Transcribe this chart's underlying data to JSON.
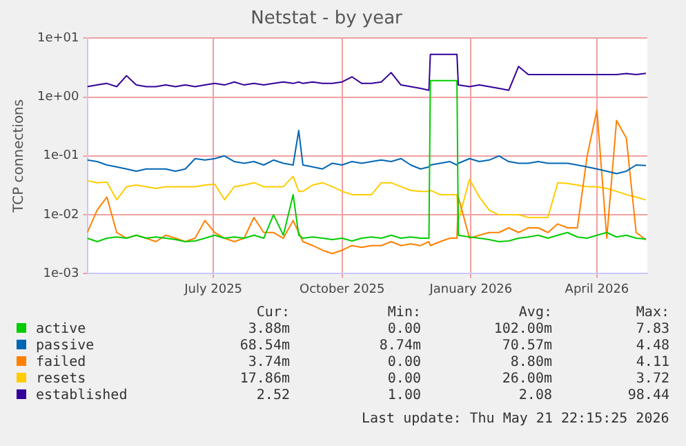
{
  "chart_data": {
    "type": "line",
    "title": "Netstat - by year",
    "ylabel": "TCP connections",
    "log": "y",
    "grid": true,
    "legend": "bottom",
    "marker": "none",
    "line_style": "solid",
    "xlim": [
      "2025-04-17",
      "2026-05-22"
    ],
    "xticks": [
      {
        "value": "2025-07-16",
        "label": "July 2025"
      },
      {
        "value": "2025-10-16",
        "label": "October 2025"
      },
      {
        "value": "2026-01-16",
        "label": "January 2026"
      },
      {
        "value": "2026-04-16",
        "label": "April 2026"
      }
    ],
    "ylim": [
      0.001,
      10
    ],
    "yticks": [
      {
        "value": 0.001,
        "label": "1e-03"
      },
      {
        "value": 0.01,
        "label": "1e-02"
      },
      {
        "value": 0.1,
        "label": "1e-01"
      },
      {
        "value": 1,
        "label": "1e+00"
      },
      {
        "value": 10,
        "label": "1e+01"
      }
    ],
    "x": [
      "2025-04-17",
      "2025-04-24",
      "2025-05-01",
      "2025-05-08",
      "2025-05-15",
      "2025-05-22",
      "2025-05-29",
      "2025-06-05",
      "2025-06-12",
      "2025-06-19",
      "2025-06-26",
      "2025-07-03",
      "2025-07-10",
      "2025-07-17",
      "2025-07-24",
      "2025-07-31",
      "2025-08-07",
      "2025-08-14",
      "2025-08-21",
      "2025-08-28",
      "2025-09-04",
      "2025-09-11",
      "2025-09-15",
      "2025-09-18",
      "2025-09-25",
      "2025-10-02",
      "2025-10-09",
      "2025-10-16",
      "2025-10-23",
      "2025-10-30",
      "2025-11-06",
      "2025-11-13",
      "2025-11-20",
      "2025-11-27",
      "2025-12-04",
      "2025-12-11",
      "2025-12-17",
      "2025-12-18",
      "2025-12-25",
      "2026-01-01",
      "2026-01-06",
      "2026-01-07",
      "2026-01-15",
      "2026-01-22",
      "2026-01-29",
      "2026-02-05",
      "2026-02-12",
      "2026-02-19",
      "2026-02-26",
      "2026-03-05",
      "2026-03-12",
      "2026-03-19",
      "2026-03-26",
      "2026-04-02",
      "2026-04-09",
      "2026-04-16",
      "2026-04-23",
      "2026-04-30",
      "2026-05-07",
      "2026-05-14",
      "2026-05-21"
    ],
    "series": [
      {
        "name": "active",
        "color": "#00cc00",
        "values": [
          0.004,
          0.0035,
          0.004,
          0.0042,
          0.004,
          0.0045,
          0.004,
          0.0042,
          0.004,
          0.0038,
          0.0035,
          0.0036,
          0.004,
          0.0045,
          0.004,
          0.0042,
          0.004,
          0.0045,
          0.004,
          0.01,
          0.0045,
          0.022,
          0.0045,
          0.004,
          0.0042,
          0.004,
          0.0038,
          0.004,
          0.0036,
          0.004,
          0.0042,
          0.004,
          0.0045,
          0.004,
          0.0042,
          0.004,
          0.004,
          1.9,
          1.9,
          1.9,
          1.9,
          0.0045,
          0.0042,
          0.004,
          0.0038,
          0.0035,
          0.0036,
          0.004,
          0.0042,
          0.0045,
          0.004,
          0.0045,
          0.005,
          0.0042,
          0.004,
          0.0045,
          0.005,
          0.0042,
          0.0045,
          0.004,
          0.00388
        ]
      },
      {
        "name": "passive",
        "color": "#0066b3",
        "values": [
          0.085,
          0.08,
          0.07,
          0.065,
          0.06,
          0.055,
          0.06,
          0.06,
          0.06,
          0.055,
          0.06,
          0.09,
          0.085,
          0.09,
          0.1,
          0.08,
          0.075,
          0.08,
          0.07,
          0.085,
          0.075,
          0.07,
          0.27,
          0.07,
          0.065,
          0.06,
          0.075,
          0.07,
          0.08,
          0.075,
          0.08,
          0.085,
          0.08,
          0.09,
          0.07,
          0.06,
          0.065,
          0.07,
          0.075,
          0.08,
          0.07,
          0.075,
          0.09,
          0.08,
          0.085,
          0.1,
          0.08,
          0.075,
          0.075,
          0.08,
          0.075,
          0.075,
          0.075,
          0.07,
          0.065,
          0.06,
          0.055,
          0.05,
          0.055,
          0.07,
          0.0685
        ]
      },
      {
        "name": "failed",
        "color": "#ff8000",
        "values": [
          0.005,
          0.012,
          0.02,
          0.005,
          0.004,
          0.0045,
          0.004,
          0.0035,
          0.0045,
          0.004,
          0.0035,
          0.004,
          0.008,
          0.005,
          0.004,
          0.0035,
          0.004,
          0.009,
          0.005,
          0.005,
          0.004,
          0.008,
          0.005,
          0.0035,
          0.003,
          0.0025,
          0.0022,
          0.0025,
          0.003,
          0.0028,
          0.003,
          0.003,
          0.0035,
          0.003,
          0.0032,
          0.003,
          0.0035,
          0.003,
          0.0035,
          0.004,
          0.004,
          0.02,
          0.004,
          0.0045,
          0.005,
          0.005,
          0.006,
          0.005,
          0.006,
          0.006,
          0.005,
          0.007,
          0.006,
          0.006,
          0.1,
          0.6,
          0.004,
          0.4,
          0.2,
          0.005,
          0.00374
        ]
      },
      {
        "name": "resets",
        "color": "#ffcc00",
        "values": [
          0.038,
          0.035,
          0.036,
          0.018,
          0.03,
          0.032,
          0.03,
          0.028,
          0.03,
          0.03,
          0.03,
          0.03,
          0.032,
          0.033,
          0.018,
          0.03,
          0.032,
          0.035,
          0.03,
          0.03,
          0.03,
          0.045,
          0.025,
          0.025,
          0.032,
          0.035,
          0.03,
          0.025,
          0.022,
          0.022,
          0.022,
          0.035,
          0.035,
          0.03,
          0.026,
          0.025,
          0.025,
          0.026,
          0.022,
          0.022,
          0.022,
          0.008,
          0.04,
          0.02,
          0.012,
          0.01,
          0.01,
          0.01,
          0.009,
          0.009,
          0.009,
          0.035,
          0.034,
          0.032,
          0.03,
          0.03,
          0.028,
          0.025,
          0.022,
          0.02,
          0.01786
        ]
      },
      {
        "name": "established",
        "color": "#330099",
        "values": [
          1.5,
          1.6,
          1.7,
          1.5,
          2.3,
          1.6,
          1.5,
          1.5,
          1.6,
          1.5,
          1.6,
          1.5,
          1.6,
          1.7,
          1.6,
          1.8,
          1.6,
          1.7,
          1.6,
          1.7,
          1.8,
          1.7,
          1.8,
          1.7,
          1.8,
          1.7,
          1.7,
          1.8,
          2.2,
          1.7,
          1.7,
          1.8,
          2.6,
          1.6,
          1.5,
          1.4,
          1.3,
          5.3,
          5.3,
          5.3,
          5.3,
          1.6,
          1.5,
          1.6,
          1.5,
          1.4,
          1.3,
          3.3,
          2.4,
          2.4,
          2.4,
          2.4,
          2.4,
          2.4,
          2.4,
          2.4,
          2.4,
          2.4,
          2.5,
          2.4,
          2.52
        ]
      }
    ],
    "annotations": [
      "Cur:",
      "Min:",
      "Avg:",
      "Max:",
      "3.88m",
      "0.00",
      "102.00m",
      "7.83",
      "68.54m",
      "8.74m",
      "70.57m",
      "4.48",
      "3.74m",
      "0.00",
      "8.80m",
      "4.11",
      "17.86m",
      "0.00",
      "26.00m",
      "3.72",
      "2.52",
      "1.00",
      "2.08",
      "98.44",
      "Last update: Thu May 21 22:15:25 2026"
    ]
  }
}
